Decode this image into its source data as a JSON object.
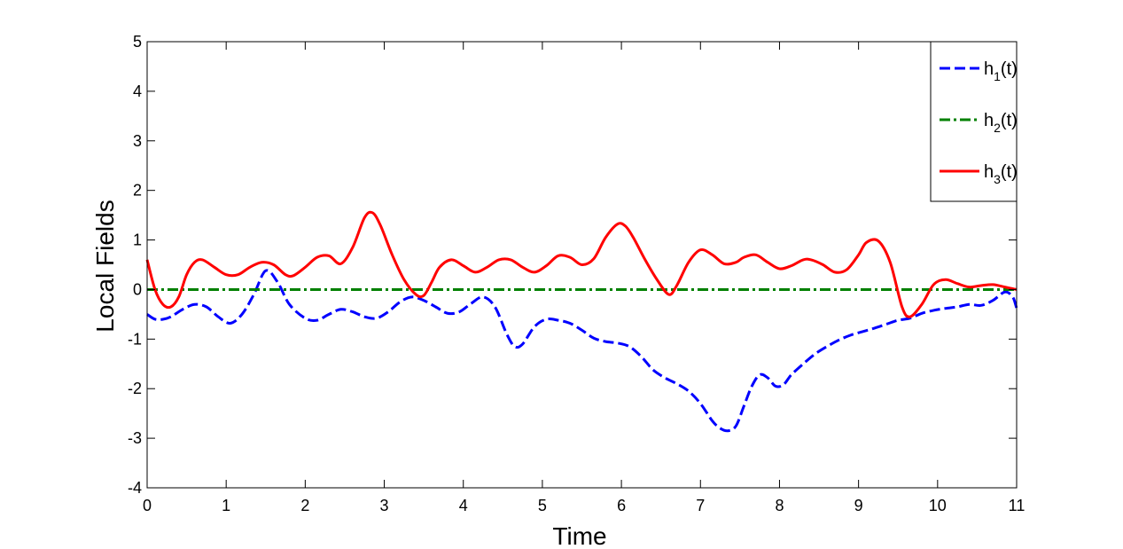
{
  "chart_data": {
    "type": "line",
    "title": "",
    "xlabel": "Time",
    "ylabel": "Local Fields",
    "xlim": [
      0,
      11
    ],
    "ylim": [
      -4,
      5
    ],
    "xticks": [
      0,
      1,
      2,
      3,
      4,
      5,
      6,
      7,
      8,
      9,
      10,
      11
    ],
    "yticks": [
      -4,
      -3,
      -2,
      -1,
      0,
      1,
      2,
      3,
      4,
      5
    ],
    "grid": false,
    "legend_position": "top-right",
    "series": [
      {
        "name": "h1(t)",
        "legend_base": "h",
        "legend_sub": "1",
        "legend_suffix": "(t)",
        "color": "#0000ff",
        "style": "dashed",
        "x": [
          0,
          0.1,
          0.2,
          0.3,
          0.45,
          0.6,
          0.75,
          0.9,
          1.05,
          1.2,
          1.35,
          1.5,
          1.65,
          1.8,
          2.0,
          2.15,
          2.3,
          2.45,
          2.6,
          2.75,
          2.9,
          3.05,
          3.2,
          3.35,
          3.5,
          3.65,
          3.8,
          3.95,
          4.1,
          4.25,
          4.4,
          4.55,
          4.65,
          4.75,
          4.9,
          5.05,
          5.2,
          5.35,
          5.5,
          5.65,
          5.8,
          5.95,
          6.1,
          6.25,
          6.4,
          6.55,
          6.7,
          6.85,
          7.0,
          7.15,
          7.25,
          7.35,
          7.45,
          7.55,
          7.65,
          7.75,
          7.85,
          7.95,
          8.05,
          8.15,
          8.3,
          8.45,
          8.6,
          8.75,
          8.9,
          9.05,
          9.2,
          9.35,
          9.5,
          9.65,
          9.8,
          9.95,
          10.1,
          10.25,
          10.4,
          10.55,
          10.7,
          10.85,
          10.95,
          11.0
        ],
        "y": [
          -0.5,
          -0.6,
          -0.6,
          -0.55,
          -0.4,
          -0.3,
          -0.35,
          -0.55,
          -0.68,
          -0.5,
          -0.1,
          0.38,
          0.15,
          -0.3,
          -0.58,
          -0.62,
          -0.5,
          -0.4,
          -0.45,
          -0.55,
          -0.58,
          -0.45,
          -0.25,
          -0.15,
          -0.22,
          -0.35,
          -0.48,
          -0.45,
          -0.28,
          -0.15,
          -0.35,
          -0.9,
          -1.15,
          -1.1,
          -0.75,
          -0.6,
          -0.62,
          -0.68,
          -0.82,
          -0.98,
          -1.05,
          -1.08,
          -1.15,
          -1.35,
          -1.62,
          -1.78,
          -1.9,
          -2.05,
          -2.3,
          -2.65,
          -2.8,
          -2.85,
          -2.75,
          -2.35,
          -1.95,
          -1.72,
          -1.78,
          -1.95,
          -1.92,
          -1.72,
          -1.5,
          -1.3,
          -1.15,
          -1.02,
          -0.92,
          -0.85,
          -0.78,
          -0.7,
          -0.62,
          -0.58,
          -0.48,
          -0.42,
          -0.38,
          -0.35,
          -0.3,
          -0.32,
          -0.22,
          -0.05,
          -0.15,
          -0.38
        ]
      },
      {
        "name": "h2(t)",
        "legend_base": "h",
        "legend_sub": "2",
        "legend_suffix": "(t)",
        "color": "#008000",
        "style": "dashdot",
        "x": [
          0,
          11
        ],
        "y": [
          0,
          0
        ]
      },
      {
        "name": "h3(t)",
        "legend_base": "h",
        "legend_sub": "3",
        "legend_suffix": "(t)",
        "color": "#ff0000",
        "style": "solid",
        "x": [
          0,
          0.1,
          0.2,
          0.3,
          0.4,
          0.5,
          0.6,
          0.7,
          0.85,
          1.0,
          1.15,
          1.3,
          1.45,
          1.6,
          1.75,
          1.85,
          2.0,
          2.15,
          2.3,
          2.45,
          2.6,
          2.75,
          2.85,
          2.95,
          3.1,
          3.25,
          3.4,
          3.5,
          3.6,
          3.7,
          3.85,
          4.0,
          4.15,
          4.3,
          4.45,
          4.6,
          4.75,
          4.9,
          5.05,
          5.2,
          5.35,
          5.5,
          5.65,
          5.8,
          5.95,
          6.05,
          6.15,
          6.3,
          6.45,
          6.6,
          6.7,
          6.85,
          7.0,
          7.15,
          7.3,
          7.45,
          7.55,
          7.7,
          7.85,
          8.0,
          8.15,
          8.3,
          8.4,
          8.55,
          8.7,
          8.85,
          9.0,
          9.1,
          9.25,
          9.4,
          9.55,
          9.65,
          9.8,
          9.95,
          10.1,
          10.25,
          10.4,
          10.55,
          10.7,
          10.85,
          11.0
        ],
        "y": [
          0.6,
          0.0,
          -0.3,
          -0.35,
          -0.15,
          0.3,
          0.55,
          0.6,
          0.45,
          0.3,
          0.3,
          0.45,
          0.55,
          0.5,
          0.3,
          0.28,
          0.45,
          0.65,
          0.68,
          0.52,
          0.85,
          1.45,
          1.55,
          1.3,
          0.7,
          0.2,
          -0.1,
          -0.12,
          0.15,
          0.45,
          0.6,
          0.48,
          0.35,
          0.45,
          0.6,
          0.6,
          0.45,
          0.35,
          0.48,
          0.68,
          0.65,
          0.5,
          0.62,
          1.05,
          1.32,
          1.28,
          1.05,
          0.6,
          0.2,
          -0.1,
          0.08,
          0.55,
          0.8,
          0.7,
          0.52,
          0.55,
          0.65,
          0.7,
          0.55,
          0.42,
          0.48,
          0.6,
          0.6,
          0.5,
          0.35,
          0.4,
          0.7,
          0.95,
          0.98,
          0.55,
          -0.35,
          -0.55,
          -0.3,
          0.1,
          0.2,
          0.12,
          0.05,
          0.08,
          0.1,
          0.05,
          0.0
        ]
      }
    ]
  }
}
